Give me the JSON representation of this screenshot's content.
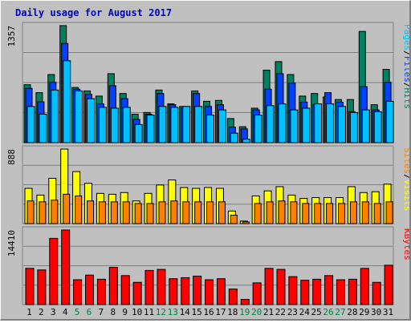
{
  "title": "Daily usage for August 2017",
  "colors": {
    "background": "#c0c0c0",
    "plot_bg": "#c0c0c0",
    "grid": "#808080",
    "title": "#0000c0",
    "hits": "#008060",
    "files": "#0040ff",
    "pages": "#00c0ff",
    "visits": "#ffff00",
    "sites": "#ff8000",
    "kbytes": "#ff0000",
    "weekend_label": "#008040",
    "weekday_label": "#000000"
  },
  "chart_data": [
    {
      "type": "bar",
      "panel": "hits-files-pages",
      "categories": [
        "1",
        "2",
        "3",
        "4",
        "5",
        "6",
        "7",
        "8",
        "9",
        "10",
        "11",
        "12",
        "13",
        "14",
        "15",
        "16",
        "17",
        "18",
        "19",
        "20",
        "21",
        "22",
        "23",
        "24",
        "25",
        "26",
        "27",
        "28",
        "29",
        "30",
        "31"
      ],
      "weekend_days": [
        "5",
        "6",
        "12",
        "13",
        "19",
        "20",
        "26",
        "27"
      ],
      "ylim": [
        0,
        1357
      ],
      "max_label": "1357",
      "legend": [
        "Pages",
        "/",
        "Files",
        "/",
        "Hits"
      ],
      "series": [
        {
          "name": "Hits",
          "values": [
            672,
            580,
            790,
            1357,
            640,
            600,
            540,
            800,
            570,
            330,
            350,
            610,
            450,
            420,
            600,
            480,
            490,
            280,
            185,
            400,
            840,
            940,
            790,
            540,
            570,
            530,
            500,
            500,
            1290,
            440,
            850
          ]
        },
        {
          "name": "Files",
          "values": [
            630,
            474,
            700,
            1150,
            620,
            560,
            450,
            660,
            510,
            270,
            330,
            570,
            440,
            400,
            570,
            420,
            440,
            180,
            160,
            380,
            620,
            800,
            690,
            470,
            440,
            580,
            470,
            360,
            650,
            380,
            700
          ]
        },
        {
          "name": "Pages",
          "values": [
            420,
            330,
            610,
            950,
            600,
            510,
            410,
            400,
            410,
            210,
            320,
            420,
            410,
            420,
            420,
            320,
            380,
            110,
            40,
            320,
            430,
            450,
            380,
            400,
            450,
            450,
            420,
            350,
            380,
            360,
            480
          ]
        }
      ]
    },
    {
      "type": "bar",
      "panel": "visits-sites",
      "categories": [
        "1",
        "2",
        "3",
        "4",
        "5",
        "6",
        "7",
        "8",
        "9",
        "10",
        "11",
        "12",
        "13",
        "14",
        "15",
        "16",
        "17",
        "18",
        "19",
        "20",
        "21",
        "22",
        "23",
        "24",
        "25",
        "26",
        "27",
        "28",
        "29",
        "30",
        "31"
      ],
      "ylim": [
        0,
        888
      ],
      "max_label": "888",
      "legend": [
        "Sites",
        "/",
        "Visits"
      ],
      "series": [
        {
          "name": "Visits",
          "values": [
            420,
            340,
            540,
            888,
            620,
            480,
            360,
            350,
            370,
            270,
            360,
            460,
            520,
            430,
            420,
            430,
            420,
            150,
            30,
            330,
            390,
            440,
            340,
            300,
            310,
            310,
            310,
            440,
            370,
            380,
            470
          ]
        },
        {
          "name": "Sites",
          "values": [
            270,
            260,
            280,
            350,
            330,
            270,
            260,
            260,
            260,
            240,
            240,
            260,
            270,
            260,
            260,
            260,
            260,
            100,
            20,
            240,
            260,
            270,
            260,
            240,
            240,
            240,
            240,
            260,
            260,
            240,
            260
          ]
        }
      ]
    },
    {
      "type": "bar",
      "panel": "kbytes",
      "categories": [
        "1",
        "2",
        "3",
        "4",
        "5",
        "6",
        "7",
        "8",
        "9",
        "10",
        "11",
        "12",
        "13",
        "14",
        "15",
        "16",
        "17",
        "18",
        "19",
        "20",
        "21",
        "22",
        "23",
        "24",
        "25",
        "26",
        "27",
        "28",
        "29",
        "30",
        "31"
      ],
      "ylim": [
        0,
        14410
      ],
      "max_label": "14410",
      "legend": [
        "KBytes"
      ],
      "series": [
        {
          "name": "KBytes",
          "values": [
            7000,
            6700,
            12800,
            14410,
            4800,
            5700,
            4900,
            7200,
            5600,
            4300,
            6600,
            6800,
            5000,
            5200,
            5500,
            4800,
            5000,
            3000,
            1000,
            4200,
            7000,
            6800,
            5400,
            4700,
            4900,
            5600,
            4800,
            4900,
            7000,
            4300,
            7600
          ]
        }
      ]
    }
  ]
}
